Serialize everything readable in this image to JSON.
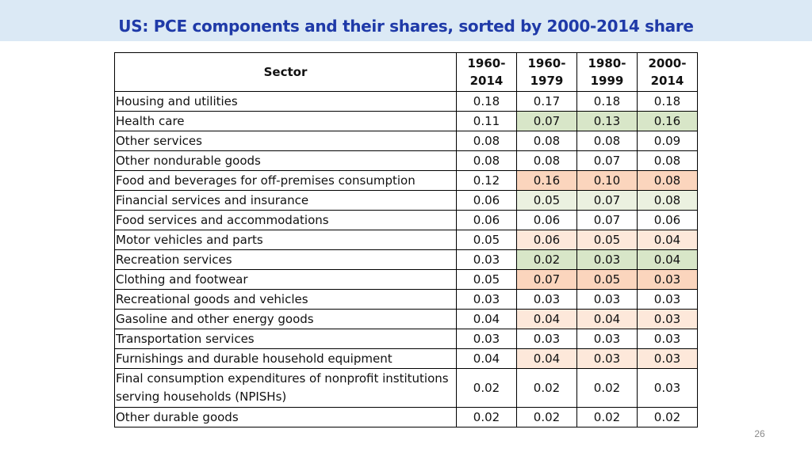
{
  "slide": {
    "title": "US: PCE components and their shares, sorted by 2000-2014 share",
    "page_number": "26"
  },
  "table": {
    "sector_header": "Sector",
    "period_headers": [
      {
        "line1": "1960-",
        "line2": "2014"
      },
      {
        "line1": "1960-",
        "line2": "1979"
      },
      {
        "line1": "1980-",
        "line2": "1999"
      },
      {
        "line1": "2000-",
        "line2": "2014"
      }
    ],
    "rows": [
      {
        "sector": "Housing and utilities",
        "values": [
          "0.18",
          "0.17",
          "0.18",
          "0.18"
        ],
        "highlight": "none"
      },
      {
        "sector": "Health care",
        "values": [
          "0.11",
          "0.07",
          "0.13",
          "0.16"
        ],
        "highlight": "green"
      },
      {
        "sector": "Other services",
        "values": [
          "0.08",
          "0.08",
          "0.08",
          "0.09"
        ],
        "highlight": "none"
      },
      {
        "sector": "Other nondurable goods",
        "values": [
          "0.08",
          "0.08",
          "0.07",
          "0.08"
        ],
        "highlight": "none"
      },
      {
        "sector": "Food and beverages for off-premises consumption",
        "values": [
          "0.12",
          "0.16",
          "0.10",
          "0.08"
        ],
        "highlight": "orange"
      },
      {
        "sector": "Financial services and insurance",
        "values": [
          "0.06",
          "0.05",
          "0.07",
          "0.08"
        ],
        "highlight": "light-green"
      },
      {
        "sector": "Food services and accommodations",
        "values": [
          "0.06",
          "0.06",
          "0.07",
          "0.06"
        ],
        "highlight": "none"
      },
      {
        "sector": "Motor vehicles and parts",
        "values": [
          "0.05",
          "0.06",
          "0.05",
          "0.04"
        ],
        "highlight": "light-orange"
      },
      {
        "sector": "Recreation services",
        "values": [
          "0.03",
          "0.02",
          "0.03",
          "0.04"
        ],
        "highlight": "green"
      },
      {
        "sector": "Clothing and footwear",
        "values": [
          "0.05",
          "0.07",
          "0.05",
          "0.03"
        ],
        "highlight": "orange"
      },
      {
        "sector": "Recreational goods and vehicles",
        "values": [
          "0.03",
          "0.03",
          "0.03",
          "0.03"
        ],
        "highlight": "none"
      },
      {
        "sector": "Gasoline and other energy goods",
        "values": [
          "0.04",
          "0.04",
          "0.04",
          "0.03"
        ],
        "highlight": "light-orange"
      },
      {
        "sector": "Transportation services",
        "values": [
          "0.03",
          "0.03",
          "0.03",
          "0.03"
        ],
        "highlight": "none"
      },
      {
        "sector": "Furnishings and durable household equipment",
        "values": [
          "0.04",
          "0.04",
          "0.03",
          "0.03"
        ],
        "highlight": "light-orange"
      },
      {
        "sector": "Final consumption expenditures of nonprofit institutions serving households (NPISHs)",
        "values": [
          "0.02",
          "0.02",
          "0.02",
          "0.03"
        ],
        "highlight": "none",
        "tall": true
      },
      {
        "sector": "Other durable goods",
        "values": [
          "0.02",
          "0.02",
          "0.02",
          "0.02"
        ],
        "highlight": "none"
      }
    ]
  },
  "colors": {
    "title_bar_bg": "#dbe9f5",
    "title_text": "#1f3aa8",
    "green": "#d8e6c8",
    "light_green": "#ebf1e0",
    "orange": "#fbd5bd",
    "light_orange": "#fde8da"
  }
}
